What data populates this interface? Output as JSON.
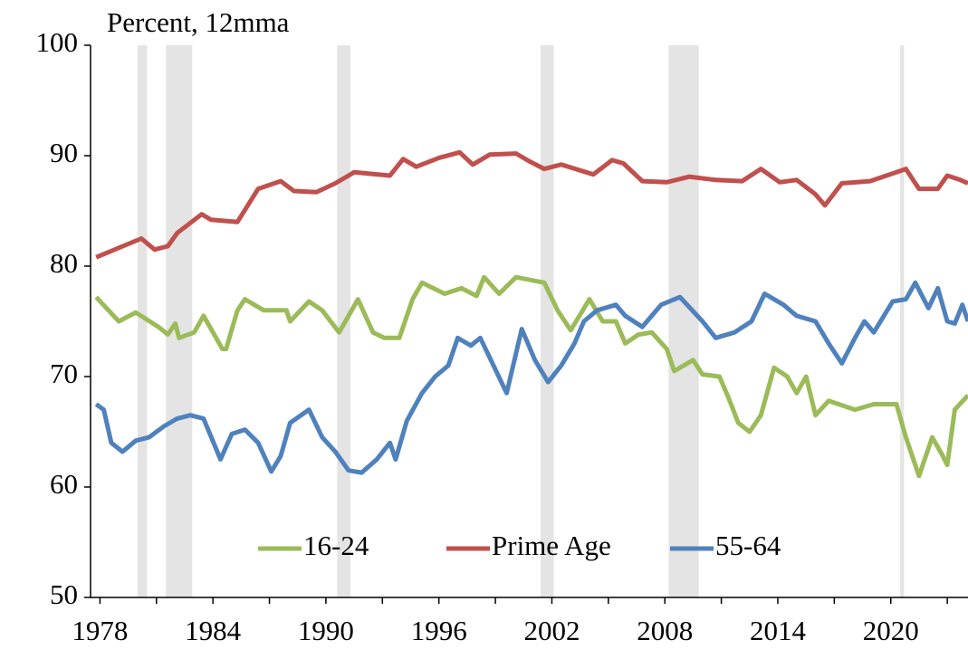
{
  "chart_data": {
    "type": "line",
    "y_label": "Percent, 12mma",
    "xlim": [
      1977.5,
      2024.1
    ],
    "xticks": [
      1978,
      1984,
      1990,
      1996,
      2002,
      2008,
      2014,
      2020
    ],
    "xminorticks": [
      1981,
      1987,
      1993,
      1999,
      2005,
      2011,
      2017,
      2023
    ],
    "ylim": [
      50,
      100
    ],
    "yticks": [
      50,
      60,
      70,
      80,
      90,
      100
    ],
    "recession_color": "#d9d9d9",
    "recessions": [
      [
        1980.0,
        1980.5
      ],
      [
        1981.5,
        1982.9
      ],
      [
        1990.6,
        1991.3
      ],
      [
        2001.4,
        2002.1
      ],
      [
        2008.2,
        2009.8
      ],
      [
        2020.5,
        2020.7
      ]
    ],
    "legend": "bottom",
    "series": [
      {
        "name": "16-24",
        "color": "#9bbb59",
        "x": [
          1977.8,
          1979.0,
          1979.9,
          1981.1,
          1981.6,
          1982.0,
          1982.2,
          1983.0,
          1983.5,
          1984.5,
          1984.7,
          1985.3,
          1985.7,
          1986.7,
          1987.9,
          1988.1,
          1989.1,
          1989.8,
          1990.7,
          1991.7,
          1992.5,
          1993.1,
          1993.9,
          1994.6,
          1995.1,
          1996.3,
          1997.2,
          1998.0,
          1998.4,
          1999.2,
          2000.1,
          2001.6,
          2002.3,
          2003.0,
          2004.0,
          2004.7,
          2005.4,
          2005.9,
          2006.6,
          2007.3,
          2008.1,
          2008.5,
          2009.5,
          2010.0,
          2010.9,
          2011.4,
          2011.9,
          2012.5,
          2013.1,
          2013.8,
          2014.5,
          2015.0,
          2015.5,
          2016.0,
          2016.7,
          2018.1,
          2019.1,
          2020.3,
          2020.8,
          2021.5,
          2022.2,
          2022.7,
          2023.0,
          2023.4,
          2024.1
        ],
        "values": [
          77.2,
          75.0,
          75.8,
          74.5,
          73.8,
          74.8,
          73.5,
          74.0,
          75.5,
          72.5,
          72.5,
          76.0,
          77.0,
          76.0,
          76.0,
          75.0,
          76.8,
          76.0,
          74.0,
          77.0,
          74.0,
          73.5,
          73.5,
          77.0,
          78.5,
          77.5,
          78.0,
          77.3,
          79.0,
          77.5,
          79.0,
          78.5,
          76.0,
          74.2,
          77.0,
          75.0,
          75.0,
          73.0,
          73.8,
          74.0,
          72.5,
          70.5,
          71.5,
          70.2,
          70.0,
          68.0,
          65.8,
          65.0,
          66.5,
          70.8,
          70.0,
          68.5,
          70.0,
          66.5,
          67.8,
          67.0,
          67.5,
          67.5,
          64.5,
          61.0,
          64.5,
          63.0,
          62.0,
          67.0,
          68.3
        ]
      },
      {
        "name": "Prime Age",
        "color": "#c0504d",
        "x": [
          1977.8,
          1980.2,
          1980.9,
          1981.6,
          1982.1,
          1983.4,
          1983.9,
          1985.3,
          1986.4,
          1987.6,
          1988.3,
          1989.5,
          1990.5,
          1991.5,
          1993.4,
          1994.1,
          1994.8,
          1996.0,
          1997.1,
          1997.8,
          1998.7,
          2000.1,
          2000.8,
          2001.6,
          2002.5,
          2004.2,
          2005.2,
          2005.8,
          2006.8,
          2008.1,
          2009.3,
          2010.7,
          2012.1,
          2013.1,
          2014.1,
          2015.0,
          2016.0,
          2016.5,
          2017.4,
          2018.9,
          2020.3,
          2020.8,
          2021.5,
          2022.5,
          2023.0,
          2023.7,
          2024.1
        ],
        "values": [
          80.8,
          82.5,
          81.5,
          81.8,
          83.0,
          84.7,
          84.2,
          84.0,
          87.0,
          87.7,
          86.8,
          86.7,
          87.5,
          88.5,
          88.2,
          89.7,
          89.0,
          89.8,
          90.3,
          89.2,
          90.1,
          90.2,
          89.5,
          88.8,
          89.2,
          88.3,
          89.6,
          89.3,
          87.7,
          87.6,
          88.1,
          87.8,
          87.7,
          88.8,
          87.6,
          87.8,
          86.5,
          85.5,
          87.5,
          87.7,
          88.5,
          88.8,
          87.0,
          87.0,
          88.2,
          87.8,
          87.5
        ]
      },
      {
        "name": "55-64",
        "color": "#4f81bd",
        "x": [
          1977.8,
          1978.2,
          1978.6,
          1979.2,
          1979.9,
          1980.6,
          1981.4,
          1982.1,
          1982.8,
          1983.5,
          1984.4,
          1985.0,
          1985.7,
          1986.4,
          1987.1,
          1987.6,
          1988.1,
          1989.1,
          1989.8,
          1990.5,
          1991.2,
          1991.9,
          1992.7,
          1993.4,
          1993.7,
          1994.3,
          1995.1,
          1995.8,
          1996.5,
          1997.0,
          1997.7,
          1998.2,
          1998.9,
          1999.6,
          2000.4,
          2001.1,
          2001.8,
          2002.5,
          2003.2,
          2003.7,
          2004.4,
          2005.4,
          2005.9,
          2006.8,
          2007.8,
          2008.8,
          2010.0,
          2010.7,
          2011.7,
          2012.6,
          2013.3,
          2014.3,
          2015.0,
          2016.0,
          2016.7,
          2017.4,
          2018.1,
          2018.6,
          2019.1,
          2020.1,
          2020.8,
          2021.3,
          2022.0,
          2022.5,
          2023.0,
          2023.4,
          2023.8,
          2024.1
        ],
        "values": [
          67.5,
          67.0,
          64.0,
          63.2,
          64.2,
          64.5,
          65.5,
          66.2,
          66.5,
          66.2,
          62.5,
          64.8,
          65.2,
          64.0,
          61.4,
          62.8,
          65.8,
          67.0,
          64.5,
          63.2,
          61.5,
          61.3,
          62.5,
          64.0,
          62.5,
          66.0,
          68.5,
          70.0,
          71.0,
          73.5,
          72.8,
          73.5,
          71.0,
          68.5,
          74.3,
          71.5,
          69.5,
          71.0,
          73.0,
          75.0,
          76.0,
          76.5,
          75.5,
          74.5,
          76.5,
          77.2,
          75.0,
          73.5,
          74.0,
          75.0,
          77.5,
          76.5,
          75.5,
          75.0,
          73.0,
          71.2,
          73.5,
          75.0,
          74.0,
          76.8,
          77.0,
          78.5,
          76.2,
          78.0,
          75.0,
          74.8,
          76.5,
          75.0
        ]
      }
    ]
  }
}
